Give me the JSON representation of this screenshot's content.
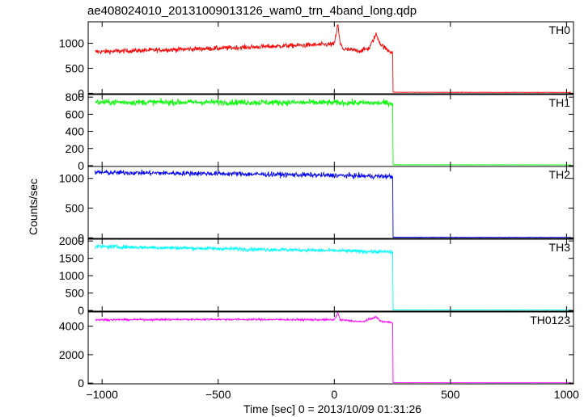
{
  "chart_data": {
    "type": "line",
    "title": "ae408024010_20131009013126_wam0_trn_4band_long.qdp",
    "xlabel": "Time [sec] 0 = 2013/10/09 01:31:26",
    "ylabel": "Counts/sec",
    "xlim": [
      -1060,
      1030
    ],
    "x_ticks": [
      -1000,
      -500,
      0,
      500,
      1000
    ],
    "x_tick_labels": [
      "−1000",
      "−500",
      "0",
      "500",
      "1000"
    ],
    "grid": false,
    "drop_time": 252,
    "panels": [
      {
        "name": "TH0",
        "color": "#ff0000",
        "ylim": [
          -10,
          1430
        ],
        "y_ticks": [
          0,
          500,
          1000
        ],
        "noise": 35,
        "profile": [
          [
            -1030,
            830
          ],
          [
            -800,
            860
          ],
          [
            -500,
            900
          ],
          [
            -200,
            950
          ],
          [
            0,
            980
          ],
          [
            15,
            1380
          ],
          [
            25,
            990
          ],
          [
            40,
            880
          ],
          [
            110,
            850
          ],
          [
            150,
            900
          ],
          [
            180,
            1180
          ],
          [
            200,
            980
          ],
          [
            230,
            860
          ],
          [
            252,
            820
          ],
          [
            253,
            20
          ],
          [
            1020,
            18
          ]
        ]
      },
      {
        "name": "TH1",
        "color": "#00ff00",
        "ylim": [
          -10,
          830
        ],
        "y_ticks": [
          0,
          200,
          400,
          600,
          800
        ],
        "noise": 25,
        "profile": [
          [
            -1030,
            740
          ],
          [
            -500,
            740
          ],
          [
            0,
            735
          ],
          [
            252,
            730
          ],
          [
            253,
            10
          ],
          [
            1020,
            8
          ]
        ]
      },
      {
        "name": "TH2",
        "color": "#0000ff",
        "ylim": [
          -10,
          1200
        ],
        "y_ticks": [
          0,
          500,
          1000
        ],
        "noise": 30,
        "profile": [
          [
            -1030,
            1100
          ],
          [
            -500,
            1080
          ],
          [
            0,
            1050
          ],
          [
            252,
            1030
          ],
          [
            253,
            10
          ],
          [
            1020,
            8
          ]
        ]
      },
      {
        "name": "TH3",
        "color": "#00ffff",
        "ylim": [
          -20,
          2050
        ],
        "y_ticks": [
          0,
          500,
          1000,
          1500,
          2000
        ],
        "noise": 40,
        "profile": [
          [
            -1030,
            1840
          ],
          [
            -500,
            1780
          ],
          [
            0,
            1720
          ],
          [
            252,
            1680
          ],
          [
            253,
            15
          ],
          [
            1020,
            12
          ]
        ]
      },
      {
        "name": "TH0123",
        "color": "#ff00ff",
        "ylim": [
          -50,
          5000
        ],
        "y_ticks": [
          0,
          2000,
          4000
        ],
        "noise": 50,
        "profile": [
          [
            -1030,
            4450
          ],
          [
            -500,
            4480
          ],
          [
            0,
            4450
          ],
          [
            15,
            4950
          ],
          [
            25,
            4450
          ],
          [
            120,
            4300
          ],
          [
            180,
            4650
          ],
          [
            200,
            4350
          ],
          [
            252,
            4250
          ],
          [
            253,
            30
          ],
          [
            1020,
            25
          ]
        ]
      }
    ]
  }
}
